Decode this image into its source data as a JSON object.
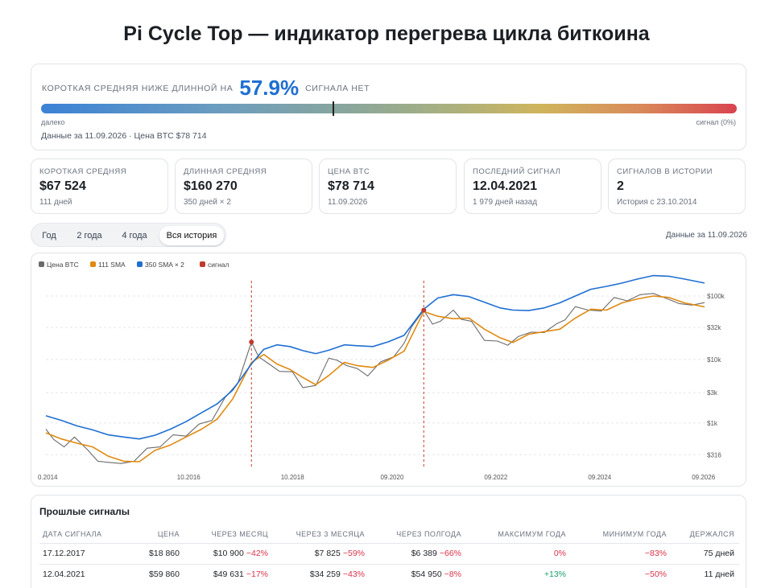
{
  "page_title": "Pi Cycle Top — индикатор перегрева цикла биткоина",
  "gauge": {
    "pre": "КОРОТКАЯ СРЕДНЯЯ НИЖЕ ДЛИННОЙ НА",
    "value": "57.9%",
    "post": "СИГНАЛА НЕТ",
    "level": 0.42,
    "left_label": "далеко",
    "right_label": "сигнал (0%)",
    "meta": "Данные за 11.09.2026 · Цена BTC $78 714"
  },
  "stats": [
    {
      "label": "КОРОТКАЯ СРЕДНЯЯ",
      "value": "$67 524",
      "sub": "111 дней"
    },
    {
      "label": "ДЛИННАЯ СРЕДНЯЯ",
      "value": "$160 270",
      "sub": "350 дней × 2"
    },
    {
      "label": "ЦЕНА BTC",
      "value": "$78 714",
      "sub": "11.09.2026"
    },
    {
      "label": "ПОСЛЕДНИЙ СИГНАЛ",
      "value": "12.04.2021",
      "sub": "1 979 дней назад"
    },
    {
      "label": "СИГНАЛОВ В ИСТОРИИ",
      "value": "2",
      "sub": "История с 23.10.2014"
    }
  ],
  "tabs": [
    {
      "label": "Год",
      "active": false
    },
    {
      "label": "2 года",
      "active": false
    },
    {
      "label": "4 года",
      "active": false
    },
    {
      "label": "Вся история",
      "active": true
    }
  ],
  "data_date": "Данные за 11.09.2026",
  "colors": {
    "price": "#6b6b6b",
    "sma111": "#e08a10",
    "sma350x2": "#1f6fd1",
    "signal": "#c0392b"
  },
  "chart_data": {
    "type": "line",
    "yscale": "log",
    "ylim": [
      200,
      220000
    ],
    "xlim": [
      "2014-01",
      "2026-09"
    ],
    "legend": [
      "Цена BTC",
      "111 SMA",
      "350 SMA × 2",
      "сигнал"
    ],
    "legend_position": "top-left",
    "y_ticks": [
      {
        "value": 316,
        "label": "$316"
      },
      {
        "value": 1000,
        "label": "$1k"
      },
      {
        "value": 3000,
        "label": "$3k"
      },
      {
        "value": 10000,
        "label": "$10k"
      },
      {
        "value": 32000,
        "label": "$32k"
      },
      {
        "value": 100000,
        "label": "$100k"
      }
    ],
    "x_ticks": [
      "0.2014",
      "10.2016",
      "10.2018",
      "09.2020",
      "09.2022",
      "09.2024",
      "09.2026"
    ],
    "x_tick_positions": [
      2014.0,
      2016.75,
      2018.75,
      2020.67,
      2022.67,
      2024.67,
      2026.67
    ],
    "signals": [
      {
        "date": "17.12.2017",
        "x": 2017.96,
        "price": 18860
      },
      {
        "date": "12.04.2021",
        "x": 2021.28,
        "price": 59860
      }
    ],
    "series": [
      {
        "name": "Цена BTC",
        "x": [
          2014.0,
          2014.15,
          2014.35,
          2014.55,
          2014.8,
          2015.0,
          2015.2,
          2015.45,
          2015.7,
          2015.95,
          2016.2,
          2016.45,
          2016.7,
          2016.95,
          2017.2,
          2017.45,
          2017.7,
          2017.96,
          2018.1,
          2018.3,
          2018.5,
          2018.75,
          2018.95,
          2019.2,
          2019.45,
          2019.6,
          2019.8,
          2020.0,
          2020.2,
          2020.45,
          2020.7,
          2020.9,
          2021.05,
          2021.28,
          2021.45,
          2021.6,
          2021.85,
          2022.0,
          2022.2,
          2022.45,
          2022.7,
          2022.9,
          2023.1,
          2023.35,
          2023.6,
          2023.85,
          2024.0,
          2024.2,
          2024.45,
          2024.7,
          2024.95,
          2025.2,
          2025.45,
          2025.7,
          2025.95,
          2026.2,
          2026.45,
          2026.69
        ],
        "values": [
          800,
          550,
          420,
          600,
          380,
          250,
          240,
          230,
          250,
          400,
          420,
          650,
          620,
          960,
          1100,
          2500,
          4300,
          18860,
          11000,
          8500,
          6500,
          6400,
          3600,
          3900,
          10500,
          9800,
          8000,
          7200,
          5500,
          9200,
          11000,
          18000,
          33000,
          59860,
          36000,
          40000,
          60000,
          43000,
          40000,
          20000,
          19500,
          16800,
          23000,
          27000,
          26500,
          37000,
          42000,
          68000,
          60000,
          58000,
          95000,
          84000,
          105000,
          110000,
          92000,
          76000,
          72000,
          78714
        ]
      },
      {
        "name": "111 SMA",
        "x": [
          2014.0,
          2014.3,
          2014.6,
          2014.9,
          2015.2,
          2015.5,
          2015.8,
          2016.1,
          2016.4,
          2016.7,
          2017.0,
          2017.3,
          2017.6,
          2017.96,
          2018.2,
          2018.45,
          2018.7,
          2018.95,
          2019.2,
          2019.45,
          2019.75,
          2020.0,
          2020.3,
          2020.6,
          2020.9,
          2021.28,
          2021.55,
          2021.85,
          2022.15,
          2022.45,
          2022.75,
          2023.0,
          2023.3,
          2023.6,
          2023.9,
          2024.2,
          2024.5,
          2024.8,
          2025.1,
          2025.4,
          2025.7,
          2026.0,
          2026.3,
          2026.69
        ],
        "values": [
          700,
          560,
          480,
          420,
          300,
          250,
          245,
          370,
          450,
          600,
          800,
          1150,
          2400,
          9000,
          12000,
          8500,
          7000,
          5200,
          4000,
          5600,
          9000,
          8000,
          7500,
          9800,
          13500,
          57000,
          48000,
          44000,
          45000,
          30000,
          22000,
          18500,
          25000,
          27500,
          30000,
          45000,
          62000,
          60000,
          78000,
          90000,
          100000,
          95000,
          78000,
          67524
        ]
      },
      {
        "name": "350 SMA × 2",
        "x": [
          2014.0,
          2014.3,
          2014.6,
          2014.9,
          2015.2,
          2015.5,
          2015.8,
          2016.1,
          2016.4,
          2016.7,
          2017.0,
          2017.3,
          2017.6,
          2017.96,
          2018.2,
          2018.45,
          2018.7,
          2018.95,
          2019.2,
          2019.45,
          2019.75,
          2020.0,
          2020.3,
          2020.6,
          2020.9,
          2021.28,
          2021.55,
          2021.85,
          2022.15,
          2022.45,
          2022.75,
          2023.0,
          2023.3,
          2023.6,
          2023.9,
          2024.2,
          2024.5,
          2024.8,
          2025.1,
          2025.4,
          2025.7,
          2026.0,
          2026.3,
          2026.69
        ],
        "values": [
          1300,
          1100,
          900,
          780,
          650,
          600,
          560,
          640,
          800,
          1050,
          1450,
          2000,
          3300,
          8500,
          14500,
          17000,
          16000,
          13800,
          12400,
          14000,
          17000,
          16500,
          16000,
          19000,
          24000,
          62000,
          93000,
          105000,
          98000,
          80000,
          65000,
          60000,
          59000,
          65000,
          78000,
          100000,
          128000,
          142000,
          160000,
          185000,
          210000,
          205000,
          185000,
          160270
        ]
      }
    ]
  },
  "table": {
    "title": "Прошлые сигналы",
    "headers": [
      "ДАТА СИГНАЛА",
      "ЦЕНА",
      "ЧЕРЕЗ МЕСЯЦ",
      "ЧЕРЕЗ 3 МЕСЯЦА",
      "ЧЕРЕЗ ПОЛГОДА",
      "МАКСИМУМ ГОДА",
      "МИНИМУМ ГОДА",
      "ДЕРЖАЛСЯ"
    ],
    "rows": [
      {
        "date": "17.12.2017",
        "price": "$18 860",
        "m1_price": "$10 900",
        "m1_pct": "−42%",
        "m3_price": "$7 825",
        "m3_pct": "−59%",
        "m6_price": "$6 389",
        "m6_pct": "−66%",
        "max": "0%",
        "min": "−83%",
        "held": "75 дней"
      },
      {
        "date": "12.04.2021",
        "price": "$59 860",
        "m1_price": "$49 631",
        "m1_pct": "−17%",
        "m3_price": "$34 259",
        "m3_pct": "−43%",
        "m6_price": "$54 950",
        "m6_pct": "−8%",
        "max": "+13%",
        "min": "−50%",
        "held": "11 дней"
      }
    ]
  }
}
